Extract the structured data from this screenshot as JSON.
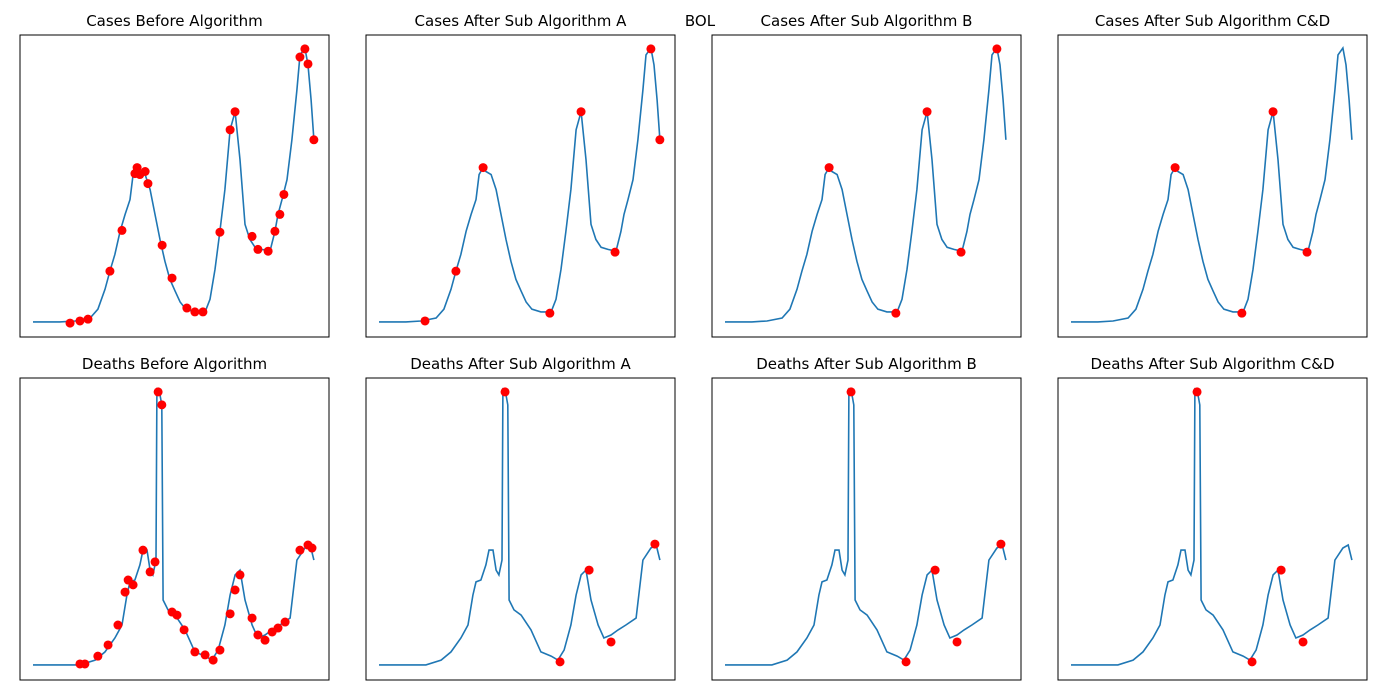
{
  "title": "BOL",
  "chart_data": [
    {
      "type": "line",
      "title": "Cases Before Algorithm",
      "xlim": [
        0,
        100
      ],
      "ylim": [
        0,
        100
      ],
      "series": [
        {
          "type": "line",
          "color": "#1f77b4",
          "x": [
            4.2,
            12.9,
            17.8,
            22.7,
            25.2,
            27.5,
            29.1,
            30.7,
            32.4,
            34.0,
            35.6,
            36.6,
            37.9,
            38.8,
            40.5,
            42.1,
            43.7,
            45.3,
            46.9,
            48.5,
            50.2,
            51.8,
            53.7,
            56.6,
            59.9,
            61.5,
            63.1,
            64.7,
            66.3,
            68.0,
            69.6,
            71.2,
            72.8,
            74.4,
            76.1,
            78.3,
            80.9,
            82.5,
            83.5,
            84.8,
            86.4,
            88.0,
            89.6,
            90.6,
            92.2,
            93.2,
            94.2,
            95.1
          ],
          "values": [
            5.0,
            5.0,
            5.3,
            6.3,
            9.2,
            15.8,
            21.8,
            27.4,
            35.0,
            40.6,
            45.5,
            53.8,
            56.1,
            54.8,
            53.8,
            48.8,
            40.6,
            32.3,
            25.1,
            19.1,
            15.2,
            11.6,
            9.2,
            8.3,
            8.3,
            12.5,
            22.4,
            35.0,
            48.8,
            68.6,
            74.6,
            58.7,
            37.3,
            32.3,
            29.7,
            29.0,
            28.4,
            34.9,
            40.6,
            45.5,
            52.1,
            65.3,
            81.8,
            93.4,
            95.7,
            90.1,
            78.5,
            65.3
          ]
        },
        {
          "type": "scatter",
          "color": "#ff0000",
          "x": [
            16.2,
            19.4,
            22.0,
            29.1,
            33.0,
            37.2,
            37.9,
            38.8,
            40.5,
            41.4,
            46.0,
            49.2,
            54.0,
            56.6,
            59.2,
            64.7,
            68.0,
            69.6,
            75.1,
            77.0,
            80.3,
            82.5,
            84.1,
            85.4,
            90.6,
            92.2,
            93.2,
            95.1
          ],
          "values": [
            4.6,
            5.3,
            5.9,
            21.8,
            35.3,
            54.1,
            56.1,
            53.8,
            54.8,
            50.8,
            30.4,
            19.5,
            9.6,
            8.3,
            8.3,
            34.7,
            68.6,
            74.6,
            33.3,
            29.0,
            28.4,
            35.0,
            40.6,
            47.2,
            92.7,
            95.4,
            90.4,
            65.3
          ]
        }
      ]
    },
    {
      "type": "line",
      "title": "Cases After Sub Algorithm A",
      "xlim": [
        0,
        100
      ],
      "ylim": [
        0,
        100
      ],
      "series": [
        {
          "type": "line",
          "color": "#1f77b4",
          "x": [
            4.2,
            12.9,
            17.8,
            22.7,
            25.2,
            27.5,
            29.1,
            30.7,
            32.4,
            34.0,
            35.6,
            36.6,
            37.9,
            38.8,
            40.5,
            42.1,
            43.7,
            45.3,
            46.9,
            48.5,
            50.2,
            51.8,
            53.7,
            56.6,
            59.9,
            61.5,
            63.1,
            64.7,
            66.3,
            68.0,
            69.6,
            71.2,
            72.8,
            74.4,
            76.1,
            78.3,
            80.9,
            82.5,
            83.5,
            84.8,
            86.4,
            88.0,
            89.6,
            90.6,
            92.2,
            93.2,
            94.2,
            95.1
          ],
          "values": [
            5.0,
            5.0,
            5.3,
            6.3,
            9.2,
            15.8,
            21.8,
            27.4,
            35.0,
            40.6,
            45.5,
            53.8,
            56.1,
            54.8,
            53.8,
            48.8,
            40.6,
            32.3,
            25.1,
            19.1,
            15.2,
            11.6,
            9.2,
            8.3,
            8.3,
            12.5,
            22.4,
            35.0,
            48.8,
            68.6,
            74.6,
            58.7,
            37.3,
            32.3,
            29.7,
            29.0,
            28.4,
            34.9,
            40.6,
            45.5,
            52.1,
            65.3,
            81.8,
            93.4,
            95.7,
            90.1,
            78.5,
            65.3
          ]
        },
        {
          "type": "scatter",
          "color": "#ff0000",
          "x": [
            19.1,
            29.1,
            37.9,
            59.5,
            69.6,
            80.6,
            92.2,
            95.1
          ],
          "values": [
            5.3,
            21.8,
            56.1,
            7.9,
            74.6,
            28.1,
            95.4,
            65.3
          ]
        }
      ]
    },
    {
      "type": "line",
      "title": "Cases After Sub Algorithm B",
      "xlim": [
        0,
        100
      ],
      "ylim": [
        0,
        100
      ],
      "series": [
        {
          "type": "line",
          "color": "#1f77b4",
          "x": [
            4.2,
            12.9,
            17.8,
            22.7,
            25.2,
            27.5,
            29.1,
            30.7,
            32.4,
            34.0,
            35.6,
            36.6,
            37.9,
            38.8,
            40.5,
            42.1,
            43.7,
            45.3,
            46.9,
            48.5,
            50.2,
            51.8,
            53.7,
            56.6,
            59.9,
            61.5,
            63.1,
            64.7,
            66.3,
            68.0,
            69.6,
            71.2,
            72.8,
            74.4,
            76.1,
            78.3,
            80.9,
            82.5,
            83.5,
            84.8,
            86.4,
            88.0,
            89.6,
            90.6,
            92.2,
            93.2,
            94.2,
            95.1
          ],
          "values": [
            5.0,
            5.0,
            5.3,
            6.3,
            9.2,
            15.8,
            21.8,
            27.4,
            35.0,
            40.6,
            45.5,
            53.8,
            56.1,
            54.8,
            53.8,
            48.8,
            40.6,
            32.3,
            25.1,
            19.1,
            15.2,
            11.6,
            9.2,
            8.3,
            8.3,
            12.5,
            22.4,
            35.0,
            48.8,
            68.6,
            74.6,
            58.7,
            37.3,
            32.3,
            29.7,
            29.0,
            28.4,
            34.9,
            40.6,
            45.5,
            52.1,
            65.3,
            81.8,
            93.4,
            95.7,
            90.1,
            78.5,
            65.3
          ]
        },
        {
          "type": "scatter",
          "color": "#ff0000",
          "x": [
            37.9,
            59.5,
            69.6,
            80.6,
            92.2
          ],
          "values": [
            56.1,
            7.9,
            74.6,
            28.1,
            95.4
          ]
        }
      ]
    },
    {
      "type": "line",
      "title": "Cases After Sub Algorithm C&D",
      "xlim": [
        0,
        100
      ],
      "ylim": [
        0,
        100
      ],
      "series": [
        {
          "type": "line",
          "color": "#1f77b4",
          "x": [
            4.2,
            12.9,
            17.8,
            22.7,
            25.2,
            27.5,
            29.1,
            30.7,
            32.4,
            34.0,
            35.6,
            36.6,
            37.9,
            38.8,
            40.5,
            42.1,
            43.7,
            45.3,
            46.9,
            48.5,
            50.2,
            51.8,
            53.7,
            56.6,
            59.9,
            61.5,
            63.1,
            64.7,
            66.3,
            68.0,
            69.6,
            71.2,
            72.8,
            74.4,
            76.1,
            78.3,
            80.9,
            82.5,
            83.5,
            84.8,
            86.4,
            88.0,
            89.6,
            90.6,
            92.2,
            93.2,
            94.2,
            95.1
          ],
          "values": [
            5.0,
            5.0,
            5.3,
            6.3,
            9.2,
            15.8,
            21.8,
            27.4,
            35.0,
            40.6,
            45.5,
            53.8,
            56.1,
            54.8,
            53.8,
            48.8,
            40.6,
            32.3,
            25.1,
            19.1,
            15.2,
            11.6,
            9.2,
            8.3,
            8.3,
            12.5,
            22.4,
            35.0,
            48.8,
            68.6,
            74.6,
            58.7,
            37.3,
            32.3,
            29.7,
            29.0,
            28.4,
            34.9,
            40.6,
            45.5,
            52.1,
            65.3,
            81.8,
            93.4,
            95.7,
            90.1,
            78.5,
            65.3
          ]
        },
        {
          "type": "scatter",
          "color": "#ff0000",
          "x": [
            37.9,
            59.5,
            69.6,
            80.6
          ],
          "values": [
            56.1,
            7.9,
            74.6,
            28.1
          ]
        }
      ]
    },
    {
      "type": "line",
      "title": "Deaths Before Algorithm",
      "xlim": [
        0,
        100
      ],
      "ylim": [
        0,
        100
      ],
      "series": [
        {
          "type": "line",
          "color": "#1f77b4",
          "x": [
            4.2,
            19.4,
            24.3,
            27.5,
            30.7,
            33.0,
            34.6,
            35.6,
            37.2,
            38.8,
            39.8,
            41.1,
            42.1,
            43.0,
            44.0,
            44.3,
            45.3,
            45.9,
            46.3,
            47.9,
            50.2,
            53.4,
            56.6,
            59.9,
            62.1,
            64.1,
            66.3,
            68.0,
            69.6,
            71.2,
            72.8,
            75.1,
            77.0,
            79.3,
            81.6,
            84.1,
            87.4,
            89.6,
            92.2,
            93.9,
            95.1
          ],
          "values": [
            5.0,
            5.0,
            6.6,
            9.3,
            13.9,
            18.2,
            28.1,
            32.5,
            33.1,
            38.1,
            43.0,
            43.0,
            36.4,
            34.8,
            39.7,
            96.0,
            94.4,
            91.1,
            26.5,
            23.2,
            21.5,
            16.6,
            9.3,
            7.9,
            6.6,
            9.9,
            18.2,
            28.1,
            34.8,
            36.4,
            26.5,
            18.2,
            13.9,
            14.9,
            16.6,
            18.2,
            20.5,
            39.7,
            43.7,
            44.7,
            39.7
          ]
        },
        {
          "type": "scatter",
          "color": "#ff0000",
          "x": [
            19.4,
            21.0,
            25.2,
            28.5,
            31.7,
            34.0,
            35.0,
            36.6,
            39.8,
            42.1,
            43.7,
            44.7,
            45.9,
            49.2,
            50.8,
            53.1,
            56.6,
            59.9,
            62.5,
            64.7,
            68.0,
            69.6,
            71.2,
            75.1,
            77.0,
            79.3,
            81.6,
            83.5,
            85.8,
            90.6,
            93.2,
            94.5
          ],
          "values": [
            5.3,
            5.3,
            7.9,
            11.6,
            18.2,
            29.1,
            33.1,
            31.5,
            43.0,
            35.8,
            39.1,
            95.4,
            91.1,
            22.5,
            21.5,
            16.6,
            9.3,
            8.3,
            6.6,
            9.9,
            21.9,
            29.8,
            34.8,
            20.5,
            14.9,
            13.2,
            15.9,
            17.2,
            19.2,
            43.0,
            44.7,
            43.7
          ]
        }
      ]
    },
    {
      "type": "line",
      "title": "Deaths After Sub Algorithm A",
      "xlim": [
        0,
        100
      ],
      "ylim": [
        0,
        100
      ],
      "series": [
        {
          "type": "line",
          "color": "#1f77b4",
          "x": [
            4.2,
            19.4,
            24.3,
            27.5,
            30.7,
            33.0,
            34.6,
            35.6,
            37.2,
            38.8,
            39.8,
            41.1,
            42.1,
            43.0,
            44.0,
            44.3,
            45.3,
            45.9,
            46.3,
            47.9,
            50.2,
            53.4,
            56.6,
            59.9,
            62.1,
            64.1,
            66.3,
            68.0,
            69.6,
            71.2,
            72.8,
            75.1,
            77.0,
            79.3,
            81.6,
            84.1,
            87.4,
            89.6,
            92.2,
            93.9,
            95.1
          ],
          "values": [
            5.0,
            5.0,
            6.6,
            9.3,
            13.9,
            18.2,
            28.1,
            32.5,
            33.1,
            38.1,
            43.0,
            43.0,
            36.4,
            34.8,
            39.7,
            96.0,
            94.4,
            91.1,
            26.5,
            23.2,
            21.5,
            16.6,
            9.3,
            7.9,
            6.6,
            9.9,
            18.2,
            28.1,
            34.8,
            36.4,
            26.5,
            18.2,
            13.9,
            14.9,
            16.6,
            18.2,
            20.5,
            39.7,
            43.7,
            44.7,
            39.7
          ]
        },
        {
          "type": "scatter",
          "color": "#ff0000",
          "x": [
            45.0,
            62.8,
            72.2,
            79.3,
            93.5
          ],
          "values": [
            95.4,
            6.0,
            36.4,
            12.6,
            45.0
          ]
        }
      ]
    },
    {
      "type": "line",
      "title": "Deaths After Sub Algorithm B",
      "xlim": [
        0,
        100
      ],
      "ylim": [
        0,
        100
      ],
      "series": [
        {
          "type": "line",
          "color": "#1f77b4",
          "x": [
            4.2,
            19.4,
            24.3,
            27.5,
            30.7,
            33.0,
            34.6,
            35.6,
            37.2,
            38.8,
            39.8,
            41.1,
            42.1,
            43.0,
            44.0,
            44.3,
            45.3,
            45.9,
            46.3,
            47.9,
            50.2,
            53.4,
            56.6,
            59.9,
            62.1,
            64.1,
            66.3,
            68.0,
            69.6,
            71.2,
            72.8,
            75.1,
            77.0,
            79.3,
            81.6,
            84.1,
            87.4,
            89.6,
            92.2,
            93.9,
            95.1
          ],
          "values": [
            5.0,
            5.0,
            6.6,
            9.3,
            13.9,
            18.2,
            28.1,
            32.5,
            33.1,
            38.1,
            43.0,
            43.0,
            36.4,
            34.8,
            39.7,
            96.0,
            94.4,
            91.1,
            26.5,
            23.2,
            21.5,
            16.6,
            9.3,
            7.9,
            6.6,
            9.9,
            18.2,
            28.1,
            34.8,
            36.4,
            26.5,
            18.2,
            13.9,
            14.9,
            16.6,
            18.2,
            20.5,
            39.7,
            43.7,
            44.7,
            39.7
          ]
        },
        {
          "type": "scatter",
          "color": "#ff0000",
          "x": [
            45.0,
            62.8,
            72.2,
            79.3,
            93.5
          ],
          "values": [
            95.4,
            6.0,
            36.4,
            12.6,
            45.0
          ]
        }
      ]
    },
    {
      "type": "line",
      "title": "Deaths After Sub Algorithm C&D",
      "xlim": [
        0,
        100
      ],
      "ylim": [
        0,
        100
      ],
      "series": [
        {
          "type": "line",
          "color": "#1f77b4",
          "x": [
            4.2,
            19.4,
            24.3,
            27.5,
            30.7,
            33.0,
            34.6,
            35.6,
            37.2,
            38.8,
            39.8,
            41.1,
            42.1,
            43.0,
            44.0,
            44.3,
            45.3,
            45.9,
            46.3,
            47.9,
            50.2,
            53.4,
            56.6,
            59.9,
            62.1,
            64.1,
            66.3,
            68.0,
            69.6,
            71.2,
            72.8,
            75.1,
            77.0,
            79.3,
            81.6,
            84.1,
            87.4,
            89.6,
            92.2,
            93.9,
            95.1
          ],
          "values": [
            5.0,
            5.0,
            6.6,
            9.3,
            13.9,
            18.2,
            28.1,
            32.5,
            33.1,
            38.1,
            43.0,
            43.0,
            36.4,
            34.8,
            39.7,
            96.0,
            94.4,
            91.1,
            26.5,
            23.2,
            21.5,
            16.6,
            9.3,
            7.9,
            6.6,
            9.9,
            18.2,
            28.1,
            34.8,
            36.4,
            26.5,
            18.2,
            13.9,
            14.9,
            16.6,
            18.2,
            20.5,
            39.7,
            43.7,
            44.7,
            39.7
          ]
        },
        {
          "type": "scatter",
          "color": "#ff0000",
          "x": [
            45.0,
            62.8,
            72.2,
            79.3
          ],
          "values": [
            95.4,
            6.0,
            36.4,
            12.6
          ]
        }
      ]
    }
  ]
}
